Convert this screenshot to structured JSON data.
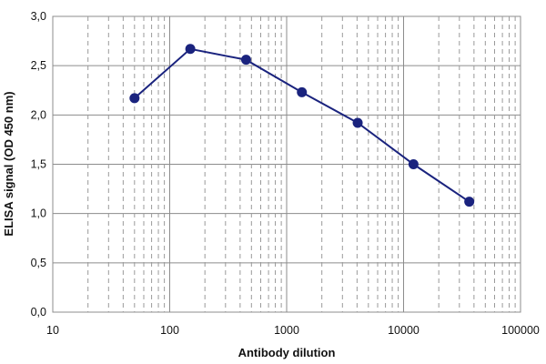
{
  "chart_data": {
    "type": "line",
    "xlabel": "Antibody dilution",
    "ylabel": "ELISA signal (OD 450 nm)",
    "x_scale": "log",
    "xlim": [
      10,
      100000
    ],
    "ylim": [
      0,
      3.0
    ],
    "x_ticks": [
      "10",
      "100",
      "1000",
      "10000",
      "100000"
    ],
    "y_ticks": [
      "0,0",
      "0,5",
      "1,0",
      "1,5",
      "2,0",
      "2,5",
      "3,0"
    ],
    "grid": {
      "x_major": true,
      "x_minor_dashed": true,
      "y_major": true
    },
    "series": [
      {
        "color": "#1a237e",
        "x": [
          50,
          150,
          450,
          1350,
          4050,
          12150,
          36450
        ],
        "y": [
          2.17,
          2.67,
          2.56,
          2.23,
          1.92,
          1.5,
          1.12
        ]
      }
    ]
  }
}
